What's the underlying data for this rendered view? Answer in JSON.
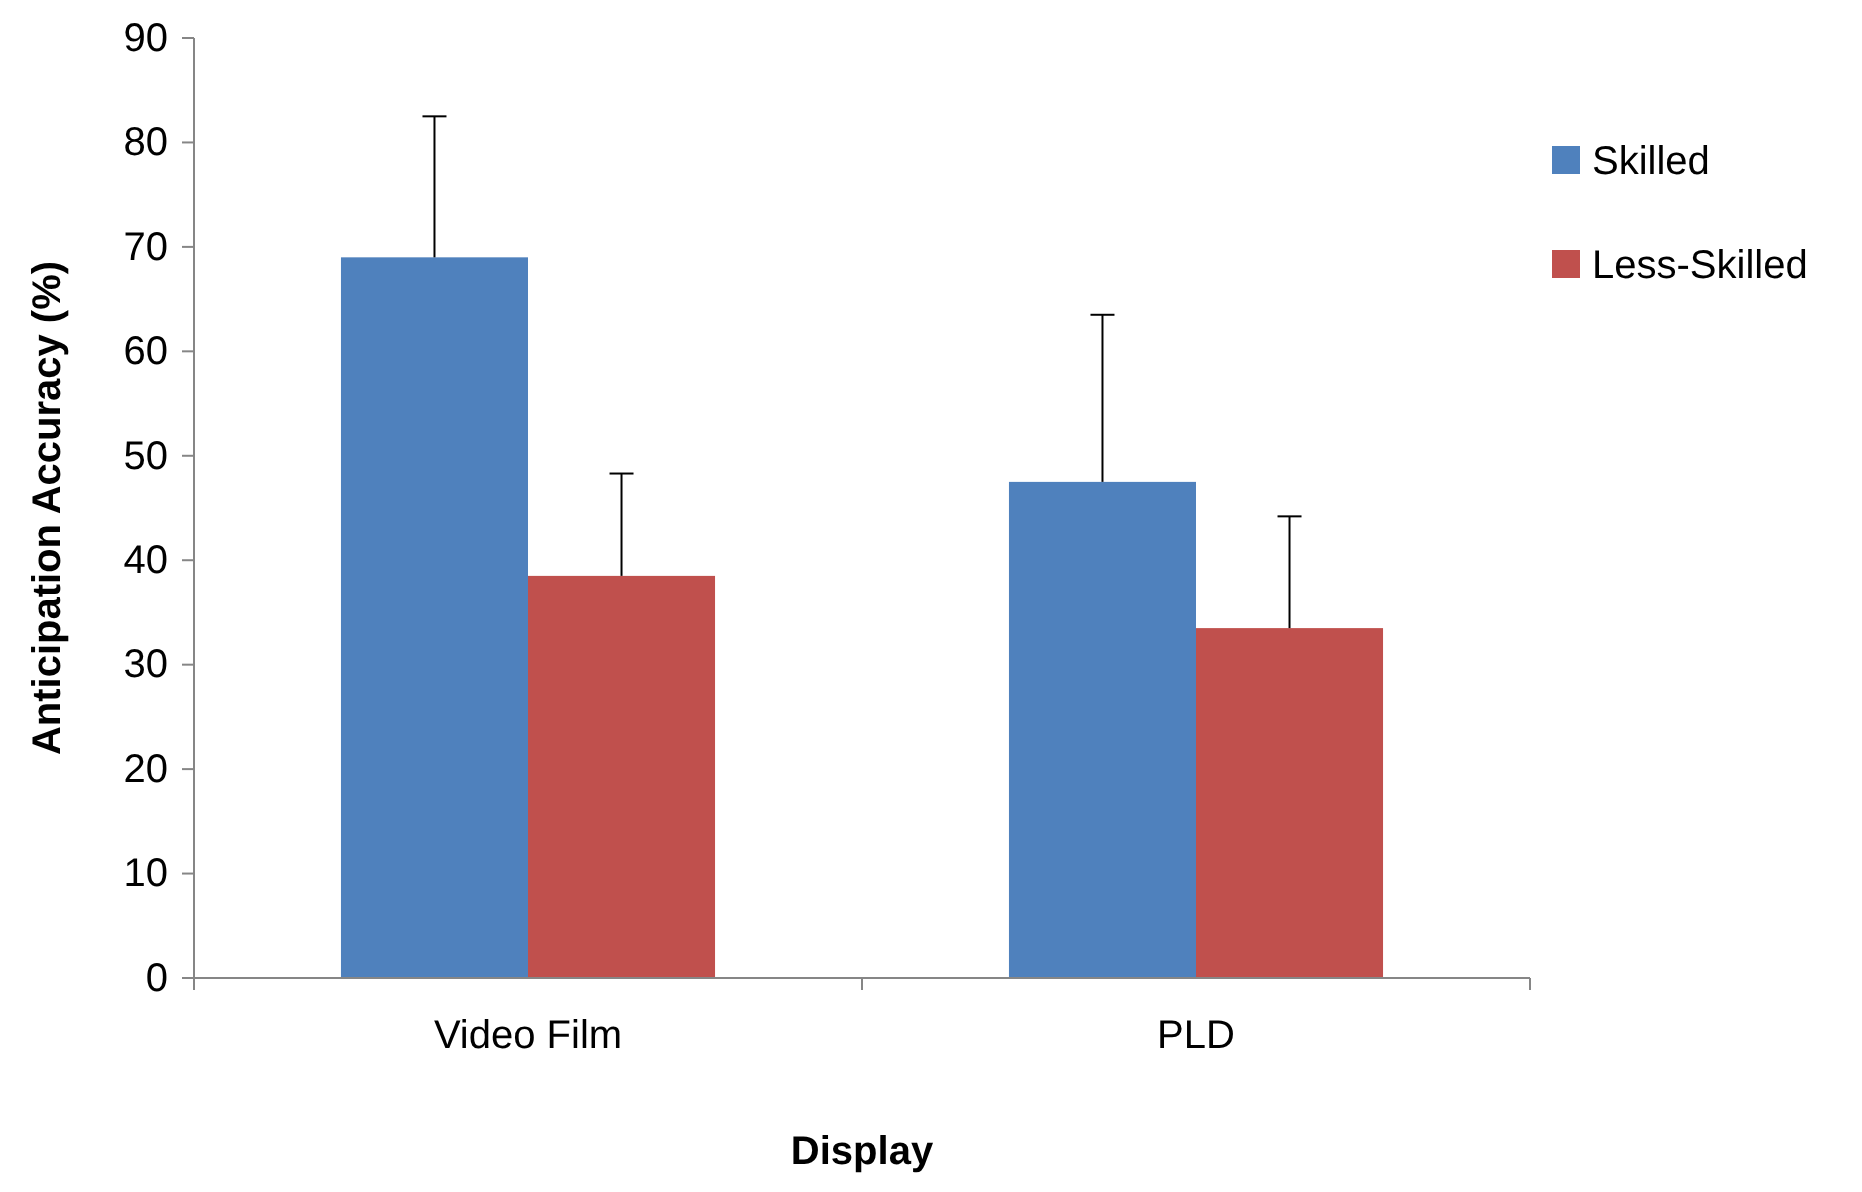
{
  "chart_data": {
    "type": "bar",
    "xlabel": "Display",
    "ylabel": "Anticipation Accuracy (%)",
    "categories": [
      "Video Film",
      "PLD"
    ],
    "series": [
      {
        "name": "Skilled",
        "color": "#4f81bd",
        "values": [
          69,
          47.5
        ],
        "errors": [
          [
            69,
            82.5
          ],
          [
            47.5,
            63.5
          ]
        ]
      },
      {
        "name": "Less-Skilled",
        "color": "#c0504d",
        "values": [
          38.5,
          33.5
        ],
        "errors": [
          [
            38.5,
            48.3
          ],
          [
            33.5,
            44.2
          ]
        ]
      }
    ],
    "ylim": [
      0,
      90
    ],
    "yticks": [
      0,
      10,
      20,
      30,
      40,
      50,
      60,
      70,
      80,
      90
    ],
    "grid": false,
    "legend": "right"
  }
}
